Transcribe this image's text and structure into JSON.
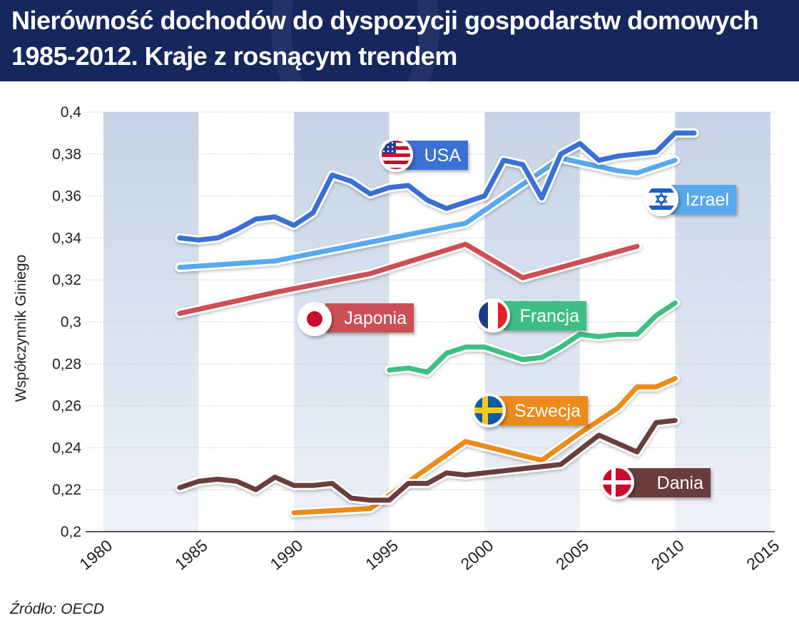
{
  "title": {
    "line1": "Nierówność dochodów do dyspozycji gospodarstw domowych",
    "line2": "1985-2012. Kraje z rosnącym trendem"
  },
  "source": "Źródło: OECD",
  "chart_data": {
    "type": "line",
    "ylabel": "Współczynnik Giniego",
    "xlabel": "",
    "xlim": [
      1980,
      2015
    ],
    "ylim": [
      0.2,
      0.4
    ],
    "x_ticks": [
      1980,
      1985,
      1990,
      1995,
      2000,
      2005,
      2010,
      2015
    ],
    "y_ticks": [
      {
        "value": 0.2,
        "label": "0,2"
      },
      {
        "value": 0.22,
        "label": "0,22"
      },
      {
        "value": 0.24,
        "label": "0,24"
      },
      {
        "value": 0.26,
        "label": "0,26"
      },
      {
        "value": 0.28,
        "label": "0,28"
      },
      {
        "value": 0.3,
        "label": "0,3"
      },
      {
        "value": 0.32,
        "label": "0,32"
      },
      {
        "value": 0.34,
        "label": "0,34"
      },
      {
        "value": 0.36,
        "label": "0,36"
      },
      {
        "value": 0.38,
        "label": "0,38"
      },
      {
        "value": 0.4,
        "label": "0,4"
      }
    ],
    "grid": true,
    "series": [
      {
        "name": "USA",
        "color": "#3b6fd6",
        "flag": "usa-flag-icon",
        "points": [
          [
            1984,
            0.34
          ],
          [
            1985,
            0.339
          ],
          [
            1986,
            0.34
          ],
          [
            1987,
            0.344
          ],
          [
            1988,
            0.349
          ],
          [
            1989,
            0.35
          ],
          [
            1990,
            0.346
          ],
          [
            1991,
            0.352
          ],
          [
            1992,
            0.37
          ],
          [
            1993,
            0.367
          ],
          [
            1994,
            0.361
          ],
          [
            1995,
            0.364
          ],
          [
            1996,
            0.365
          ],
          [
            1997,
            0.358
          ],
          [
            1998,
            0.354
          ],
          [
            1999,
            0.357
          ],
          [
            2000,
            0.36
          ],
          [
            2001,
            0.377
          ],
          [
            2002,
            0.375
          ],
          [
            2003,
            0.359
          ],
          [
            2004,
            0.38
          ],
          [
            2005,
            0.385
          ],
          [
            2006,
            0.377
          ],
          [
            2007,
            0.379
          ],
          [
            2008,
            0.38
          ],
          [
            2009,
            0.381
          ],
          [
            2010,
            0.39
          ],
          [
            2011,
            0.39
          ]
        ]
      },
      {
        "name": "Izrael",
        "color": "#58a9ef",
        "flag": "israel-flag-icon",
        "points": [
          [
            1984,
            0.326
          ],
          [
            1989,
            0.329
          ],
          [
            1994,
            0.338
          ],
          [
            1999,
            0.347
          ],
          [
            2004,
            0.378
          ],
          [
            2007,
            0.372
          ],
          [
            2008,
            0.371
          ],
          [
            2009,
            0.374
          ],
          [
            2010,
            0.377
          ]
        ]
      },
      {
        "name": "Japonia",
        "color": "#cc4f55",
        "flag": "japan-flag-icon",
        "points": [
          [
            1984,
            0.304
          ],
          [
            1989,
            0.314
          ],
          [
            1994,
            0.323
          ],
          [
            1999,
            0.337
          ],
          [
            2002,
            0.321
          ],
          [
            2008,
            0.336
          ]
        ]
      },
      {
        "name": "Francja",
        "color": "#3dbf83",
        "flag": "france-flag-icon",
        "points": [
          [
            1995,
            0.277
          ],
          [
            1996,
            0.278
          ],
          [
            1997,
            0.276
          ],
          [
            1998,
            0.285
          ],
          [
            1999,
            0.288
          ],
          [
            2000,
            0.288
          ],
          [
            2002,
            0.282
          ],
          [
            2003,
            0.283
          ],
          [
            2004,
            0.288
          ],
          [
            2005,
            0.294
          ],
          [
            2006,
            0.293
          ],
          [
            2007,
            0.294
          ],
          [
            2008,
            0.294
          ],
          [
            2009,
            0.303
          ],
          [
            2010,
            0.309
          ]
        ]
      },
      {
        "name": "Szwecja",
        "color": "#ec8a1a",
        "flag": "sweden-flag-icon",
        "points": [
          [
            1990,
            0.209
          ],
          [
            1994,
            0.211
          ],
          [
            1999,
            0.243
          ],
          [
            2003,
            0.234
          ],
          [
            2005,
            0.247
          ],
          [
            2007,
            0.259
          ],
          [
            2008,
            0.269
          ],
          [
            2009,
            0.269
          ],
          [
            2010,
            0.273
          ]
        ]
      },
      {
        "name": "Dania",
        "color": "#6b3e3e",
        "flag": "denmark-flag-icon",
        "points": [
          [
            1984,
            0.221
          ],
          [
            1985,
            0.224
          ],
          [
            1986,
            0.225
          ],
          [
            1987,
            0.224
          ],
          [
            1988,
            0.22
          ],
          [
            1989,
            0.226
          ],
          [
            1990,
            0.222
          ],
          [
            1991,
            0.222
          ],
          [
            1992,
            0.223
          ],
          [
            1993,
            0.216
          ],
          [
            1994,
            0.215
          ],
          [
            1995,
            0.215
          ],
          [
            1996,
            0.223
          ],
          [
            1997,
            0.223
          ],
          [
            1998,
            0.228
          ],
          [
            1999,
            0.227
          ],
          [
            2004,
            0.232
          ],
          [
            2006,
            0.246
          ],
          [
            2008,
            0.238
          ],
          [
            2009,
            0.252
          ],
          [
            2010,
            0.253
          ]
        ]
      }
    ]
  }
}
